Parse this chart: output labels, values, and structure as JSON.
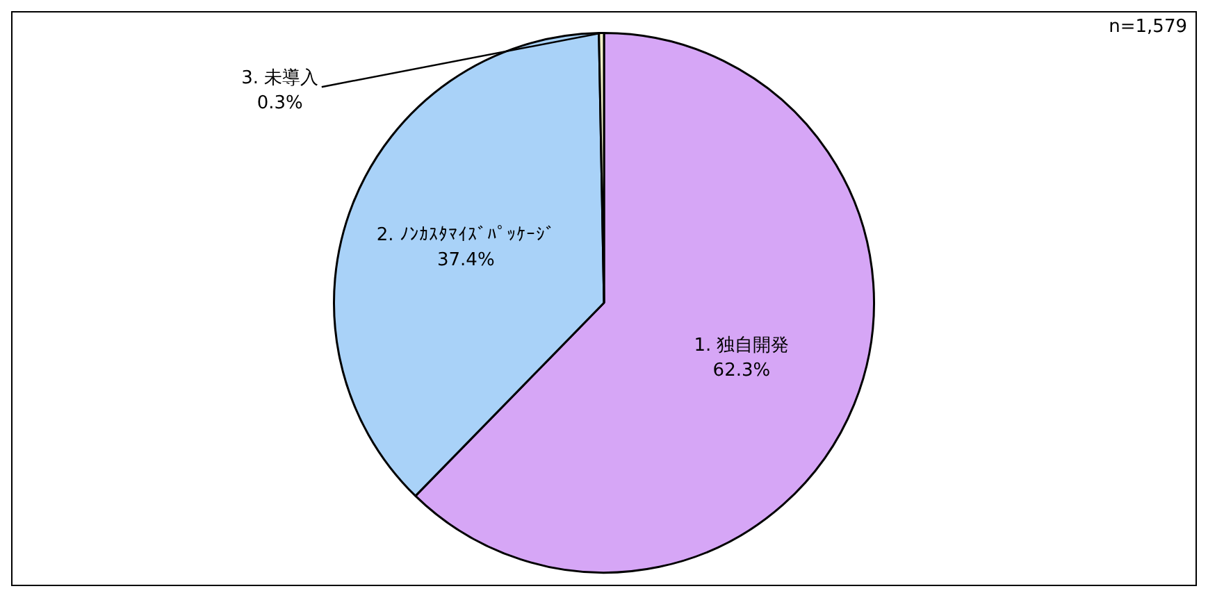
{
  "chart_data": {
    "type": "pie",
    "categories": [
      "1. 独自開発",
      "2. ﾉﾝｶｽﾀﾏｲｽﾞﾊﾟｯｹｰｼﾞ",
      "3. 未導入"
    ],
    "values": [
      62.3,
      37.4,
      0.3
    ],
    "colors": [
      "#d6a6f6",
      "#a9d2f8",
      "#f2f0c8"
    ],
    "value_labels": [
      "62.3%",
      "37.4%",
      "0.3%"
    ],
    "legend": false,
    "annotations": [
      "n=1,579"
    ]
  }
}
